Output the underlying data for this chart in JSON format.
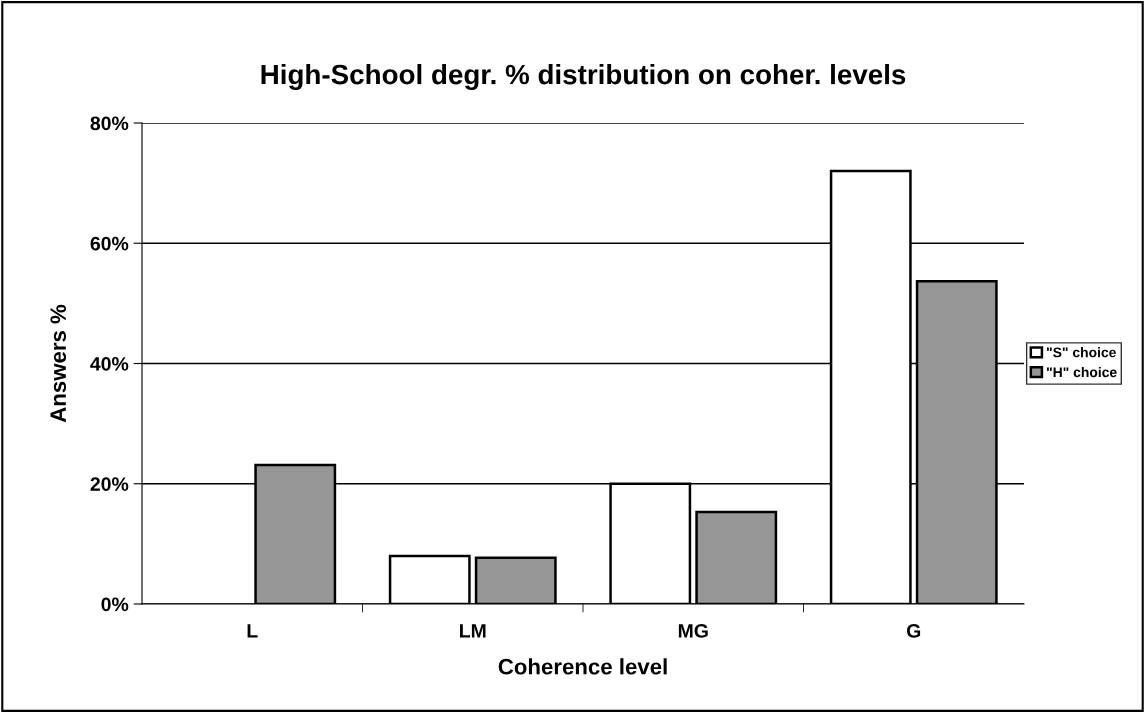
{
  "chart_data": {
    "type": "bar",
    "title": "High-School degr. % distribution on coher. levels",
    "xlabel": "Coherence level",
    "ylabel": "Answers %",
    "categories": [
      "L",
      "LM",
      "MG",
      "G"
    ],
    "series": [
      {
        "name": "\"S\" choice",
        "color": "#ffffff",
        "values": [
          null,
          8.0,
          20.0,
          72.0
        ]
      },
      {
        "name": "\"H\" choice",
        "color": "#969696",
        "values": [
          23.1,
          7.7,
          15.3,
          53.7
        ]
      }
    ],
    "ylim": [
      0,
      80
    ],
    "yticks": [
      {
        "value": 0,
        "label": "0%"
      },
      {
        "value": 20,
        "label": "20%"
      },
      {
        "value": 40,
        "label": "40%"
      },
      {
        "value": 60,
        "label": "60%"
      },
      {
        "value": 80,
        "label": "80%"
      }
    ],
    "grid": "y",
    "legend": "right"
  }
}
